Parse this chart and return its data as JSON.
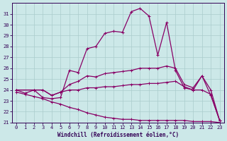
{
  "xlabel": "Windchill (Refroidissement éolien,°C)",
  "xlim": [
    -0.5,
    23.5
  ],
  "ylim": [
    21,
    32
  ],
  "yticks": [
    21,
    22,
    23,
    24,
    25,
    26,
    27,
    28,
    29,
    30,
    31
  ],
  "xticks": [
    0,
    1,
    2,
    3,
    4,
    5,
    6,
    7,
    8,
    9,
    10,
    11,
    12,
    13,
    14,
    15,
    16,
    17,
    18,
    19,
    20,
    21,
    22,
    23
  ],
  "bg_color": "#cce8e8",
  "line_color": "#880066",
  "grid_color": "#aacccc",
  "line1_x": [
    0,
    1,
    2,
    3,
    4,
    5,
    6,
    7,
    8,
    9,
    10,
    11,
    12,
    13,
    14,
    15,
    16,
    17,
    18,
    19,
    20,
    21,
    22,
    23
  ],
  "line1_y": [
    24.0,
    23.7,
    24.0,
    23.3,
    23.2,
    23.3,
    25.8,
    25.6,
    27.8,
    28.0,
    29.2,
    29.4,
    29.3,
    31.2,
    31.5,
    30.8,
    27.2,
    30.2,
    25.8,
    24.2,
    24.0,
    25.3,
    23.5,
    21.2
  ],
  "line2_x": [
    0,
    2,
    3,
    4,
    5,
    6,
    7,
    8,
    9,
    10,
    11,
    12,
    13,
    14,
    15,
    16,
    17,
    18,
    19,
    20,
    21,
    22,
    23
  ],
  "line2_y": [
    24.0,
    24.0,
    24.0,
    23.5,
    23.8,
    24.5,
    24.8,
    25.3,
    25.2,
    25.5,
    25.6,
    25.7,
    25.8,
    26.0,
    26.0,
    26.0,
    26.2,
    26.0,
    24.5,
    24.2,
    25.3,
    24.0,
    21.2
  ],
  "line3_x": [
    0,
    2,
    3,
    4,
    5,
    6,
    7,
    8,
    9,
    10,
    11,
    12,
    13,
    14,
    15,
    16,
    17,
    18,
    19,
    20,
    21,
    22,
    23
  ],
  "line3_y": [
    24.0,
    24.0,
    24.0,
    23.5,
    23.8,
    24.0,
    24.0,
    24.2,
    24.2,
    24.3,
    24.3,
    24.4,
    24.5,
    24.5,
    24.6,
    24.6,
    24.7,
    24.8,
    24.3,
    24.0,
    24.0,
    23.6,
    21.2
  ],
  "line4_x": [
    0,
    1,
    2,
    3,
    4,
    5,
    6,
    7,
    8,
    9,
    10,
    11,
    12,
    13,
    14,
    15,
    16,
    17,
    18,
    19,
    20,
    21,
    22,
    23
  ],
  "line4_y": [
    23.8,
    23.6,
    23.4,
    23.2,
    22.9,
    22.7,
    22.4,
    22.2,
    21.9,
    21.7,
    21.5,
    21.4,
    21.3,
    21.3,
    21.2,
    21.2,
    21.2,
    21.2,
    21.2,
    21.2,
    21.1,
    21.1,
    21.1,
    21.0
  ]
}
